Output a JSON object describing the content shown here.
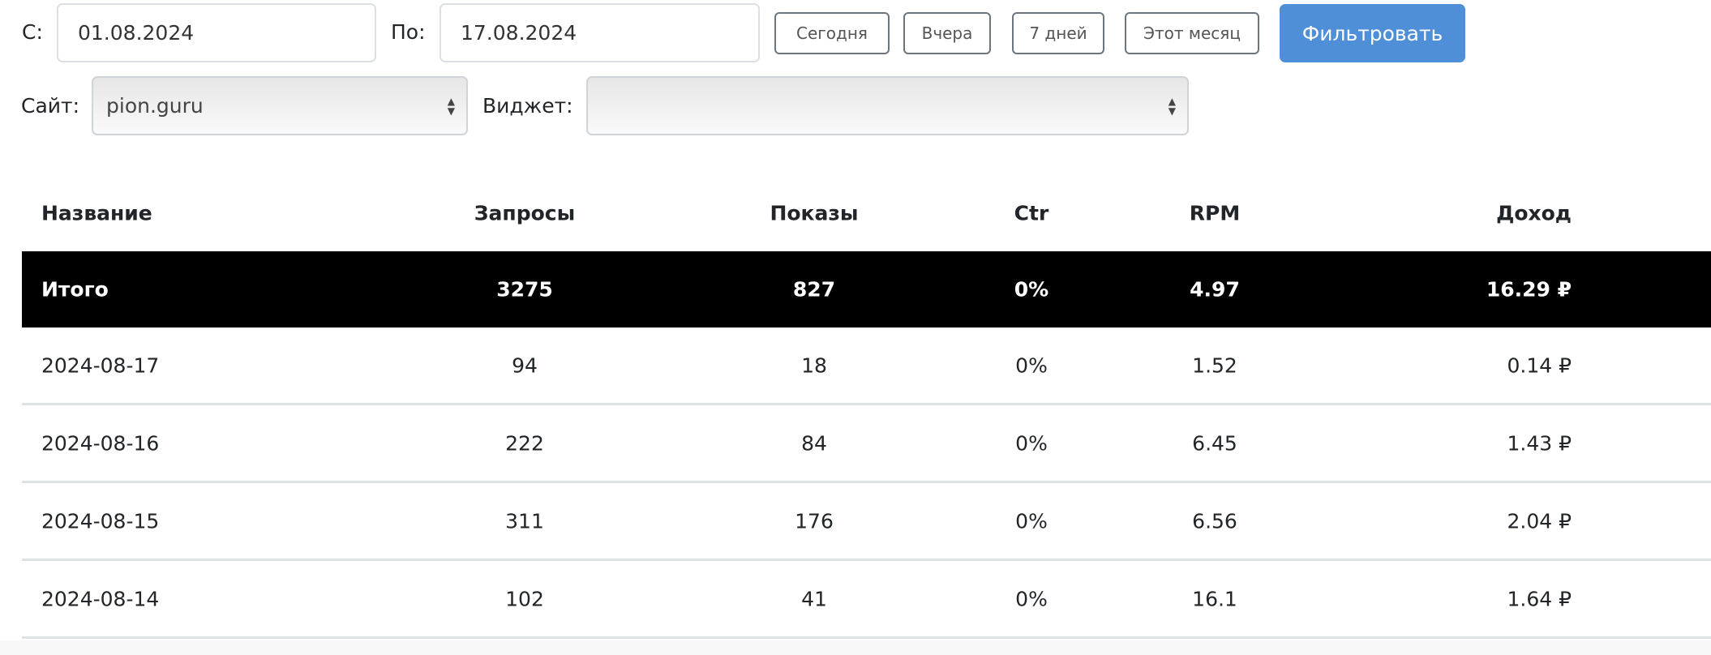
{
  "filters": {
    "from_label": "С:",
    "from_value": "01.08.2024",
    "to_label": "По:",
    "to_value": "17.08.2024",
    "quick_buttons": [
      "Сегодня",
      "Вчера",
      "7 дней",
      "Этот месяц"
    ],
    "filter_button": "Фильтровать",
    "site_label": "Сайт:",
    "site_value": "pion.guru",
    "widget_label": "Виджет:",
    "widget_value": ""
  },
  "colors": {
    "primary": "#4f8fd8",
    "total_row_bg": "#000000"
  },
  "table": {
    "columns": [
      "Название",
      "Запросы",
      "Показы",
      "Ctr",
      "RPM",
      "Доход"
    ],
    "total": [
      "Итого",
      "3275",
      "827",
      "0%",
      "4.97",
      "16.29 ₽"
    ],
    "rows": [
      [
        "2024-08-17",
        "94",
        "18",
        "0%",
        "1.52",
        "0.14 ₽"
      ],
      [
        "2024-08-16",
        "222",
        "84",
        "0%",
        "6.45",
        "1.43 ₽"
      ],
      [
        "2024-08-15",
        "311",
        "176",
        "0%",
        "6.56",
        "2.04 ₽"
      ],
      [
        "2024-08-14",
        "102",
        "41",
        "0%",
        "16.1",
        "1.64 ₽"
      ]
    ]
  }
}
